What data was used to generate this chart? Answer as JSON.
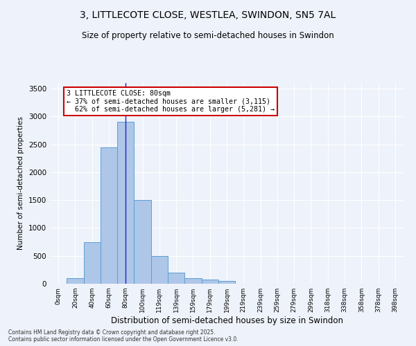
{
  "title_line1": "3, LITTLECOTE CLOSE, WESTLEA, SWINDON, SN5 7AL",
  "title_line2": "Size of property relative to semi-detached houses in Swindon",
  "xlabel": "Distribution of semi-detached houses by size in Swindon",
  "ylabel": "Number of semi-detached properties",
  "categories": [
    "0sqm",
    "20sqm",
    "40sqm",
    "60sqm",
    "80sqm",
    "100sqm",
    "119sqm",
    "139sqm",
    "159sqm",
    "179sqm",
    "199sqm",
    "219sqm",
    "239sqm",
    "259sqm",
    "279sqm",
    "299sqm",
    "318sqm",
    "338sqm",
    "358sqm",
    "378sqm",
    "398sqm"
  ],
  "values": [
    5,
    100,
    750,
    2450,
    2900,
    1500,
    500,
    200,
    100,
    75,
    50,
    5,
    0,
    0,
    0,
    0,
    0,
    0,
    0,
    0,
    0
  ],
  "bar_color": "#aec6e8",
  "bar_edge_color": "#5a9fd4",
  "property_sqm": 80,
  "property_label": "3 LITTLECOTE CLOSE: 80sqm",
  "smaller_pct": "37%",
  "smaller_count": 3115,
  "larger_pct": "62%",
  "larger_count": 5281,
  "annotation_box_color": "#ffffff",
  "annotation_box_edge_color": "#cc0000",
  "property_line_color": "#2222cc",
  "ylim": [
    0,
    3600
  ],
  "yticks": [
    0,
    500,
    1000,
    1500,
    2000,
    2500,
    3000,
    3500
  ],
  "background_color": "#eef2fa",
  "grid_color": "#ffffff",
  "footer": "Contains HM Land Registry data © Crown copyright and database right 2025.\nContains public sector information licensed under the Open Government Licence v3.0."
}
